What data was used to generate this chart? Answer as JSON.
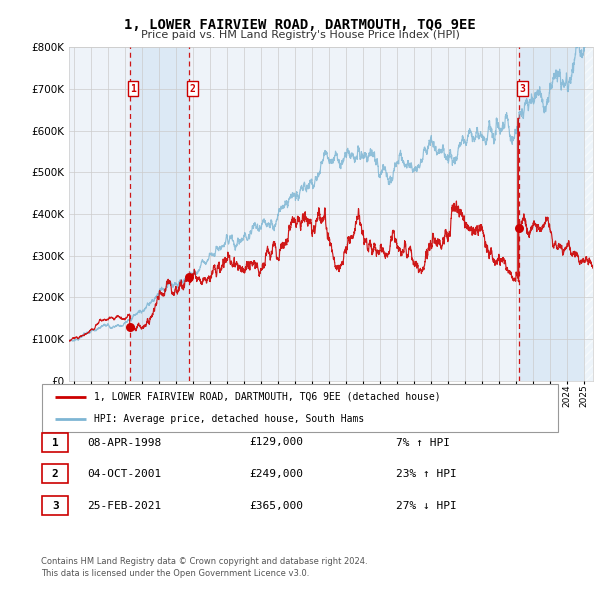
{
  "title": "1, LOWER FAIRVIEW ROAD, DARTMOUTH, TQ6 9EE",
  "subtitle": "Price paid vs. HM Land Registry's House Price Index (HPI)",
  "legend_line1": "1, LOWER FAIRVIEW ROAD, DARTMOUTH, TQ6 9EE (detached house)",
  "legend_line2": "HPI: Average price, detached house, South Hams",
  "table": [
    {
      "num": 1,
      "date": "08-APR-1998",
      "price": "£129,000",
      "hpi": "7% ↑ HPI"
    },
    {
      "num": 2,
      "date": "04-OCT-2001",
      "price": "£249,000",
      "hpi": "23% ↑ HPI"
    },
    {
      "num": 3,
      "date": "25-FEB-2021",
      "price": "£365,000",
      "hpi": "27% ↓ HPI"
    }
  ],
  "footnote1": "Contains HM Land Registry data © Crown copyright and database right 2024.",
  "footnote2": "This data is licensed under the Open Government Licence v3.0.",
  "sale_dates_num": [
    1998.27,
    2001.75,
    2021.15
  ],
  "sale_prices": [
    129000,
    249000,
    365000
  ],
  "ylim": [
    0,
    800000
  ],
  "xlim_start": 1994.7,
  "xlim_end": 2025.5,
  "red_color": "#cc0000",
  "blue_color": "#7eb6d4",
  "bg_shade_color": "#dce9f5",
  "vline_color": "#cc0000",
  "grid_color": "#cccccc",
  "plot_bg": "#eef3f9"
}
